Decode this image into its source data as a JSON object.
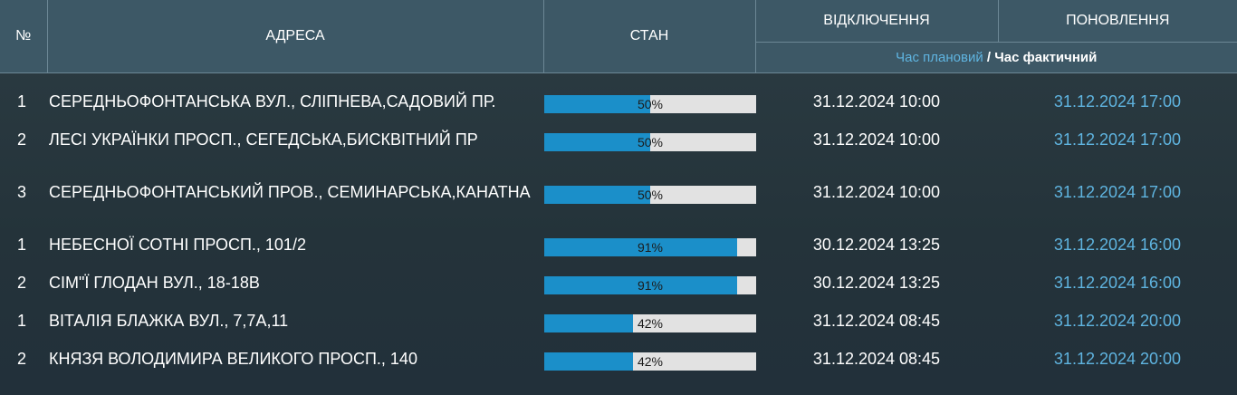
{
  "header": {
    "num": "№",
    "address": "АДРЕСА",
    "status": "СТАН",
    "outage": "ВІДКЛЮЧЕННЯ",
    "restore": "ПОНОВЛЕННЯ",
    "time_planned": "Час плановий",
    "time_separator": " / ",
    "time_actual": "Час фактичний"
  },
  "colors": {
    "header_bg": "#3d5866",
    "page_bg": "#26343b",
    "progress_fill": "#1b8fc9",
    "progress_track": "#e2e2e2",
    "accent_time": "#5fb4e0"
  },
  "rows": [
    {
      "num": "1",
      "address": "СЕРЕДНЬОФОНТАНСЬКА ВУЛ., СЛІПНЕВА,САДОВИЙ ПР.",
      "progress": 50,
      "progress_label": "50%",
      "off": "31.12.2024 10:00",
      "restore": "31.12.2024 17:00"
    },
    {
      "num": "2",
      "address": "ЛЕСІ УКРАЇНКИ ПРОСП., СЕГЕДСЬКА,БИСКВІТНИЙ ПР",
      "progress": 50,
      "progress_label": "50%",
      "off": "31.12.2024 10:00",
      "restore": "31.12.2024 17:00"
    },
    {
      "num": "3",
      "address": "СЕРЕДНЬОФОНТАНСЬКИЙ ПРОВ., СЕМИНАРСЬКА,КАНАТНА",
      "progress": 50,
      "progress_label": "50%",
      "off": "31.12.2024 10:00",
      "restore": "31.12.2024 17:00"
    },
    {
      "num": "1",
      "address": "НЕБЕСНОЇ СОТНІ ПРОСП., 101/2",
      "progress": 91,
      "progress_label": "91%",
      "off": "30.12.2024 13:25",
      "restore": "31.12.2024 16:00"
    },
    {
      "num": "2",
      "address": "СІМ\"Ї ГЛОДАН ВУЛ., 18-18В",
      "progress": 91,
      "progress_label": "91%",
      "off": "30.12.2024 13:25",
      "restore": "31.12.2024 16:00"
    },
    {
      "num": "1",
      "address": "ВІТАЛІЯ БЛАЖКА ВУЛ., 7,7А,11",
      "progress": 42,
      "progress_label": "42%",
      "off": "31.12.2024 08:45",
      "restore": "31.12.2024 20:00"
    },
    {
      "num": "2",
      "address": "КНЯЗЯ ВОЛОДИМИРА ВЕЛИКОГО ПРОСП., 140",
      "progress": 42,
      "progress_label": "42%",
      "off": "31.12.2024 08:45",
      "restore": "31.12.2024 20:00"
    }
  ]
}
